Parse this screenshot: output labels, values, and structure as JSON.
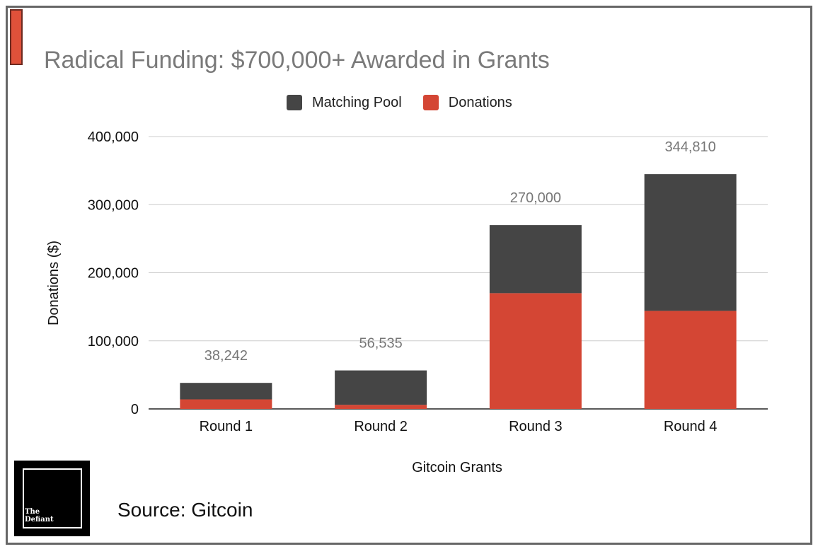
{
  "title": "Radical Funding: $700,000+ Awarded in Grants",
  "source": "Source: Gitcoin",
  "logo": {
    "line1": "The",
    "line2": "Defiant"
  },
  "colors": {
    "matching_pool": "#454545",
    "donations": "#d44634",
    "accent": "#e0513a"
  },
  "chart_data": {
    "type": "bar",
    "stacked": true,
    "categories": [
      "Round 1",
      "Round 2",
      "Round 3",
      "Round 4"
    ],
    "series": [
      {
        "name": "Donations",
        "values": [
          14000,
          6000,
          170000,
          144000
        ]
      },
      {
        "name": "Matching Pool",
        "values": [
          24242,
          50535,
          100000,
          200810
        ]
      }
    ],
    "totals": [
      38242,
      56535,
      270000,
      344810
    ],
    "total_labels": [
      "38,242",
      "56,535",
      "270,000",
      "344,810"
    ],
    "xlabel": "Gitcoin Grants",
    "ylabel": "Donations ($)",
    "ylim": [
      0,
      400000
    ],
    "yticks": [
      0,
      100000,
      200000,
      300000,
      400000
    ],
    "ytick_labels": [
      "0",
      "100,000",
      "200,000",
      "300,000",
      "400,000"
    ],
    "legend": [
      "Matching Pool",
      "Donations"
    ],
    "legend_position": "top-center",
    "grid": true
  }
}
